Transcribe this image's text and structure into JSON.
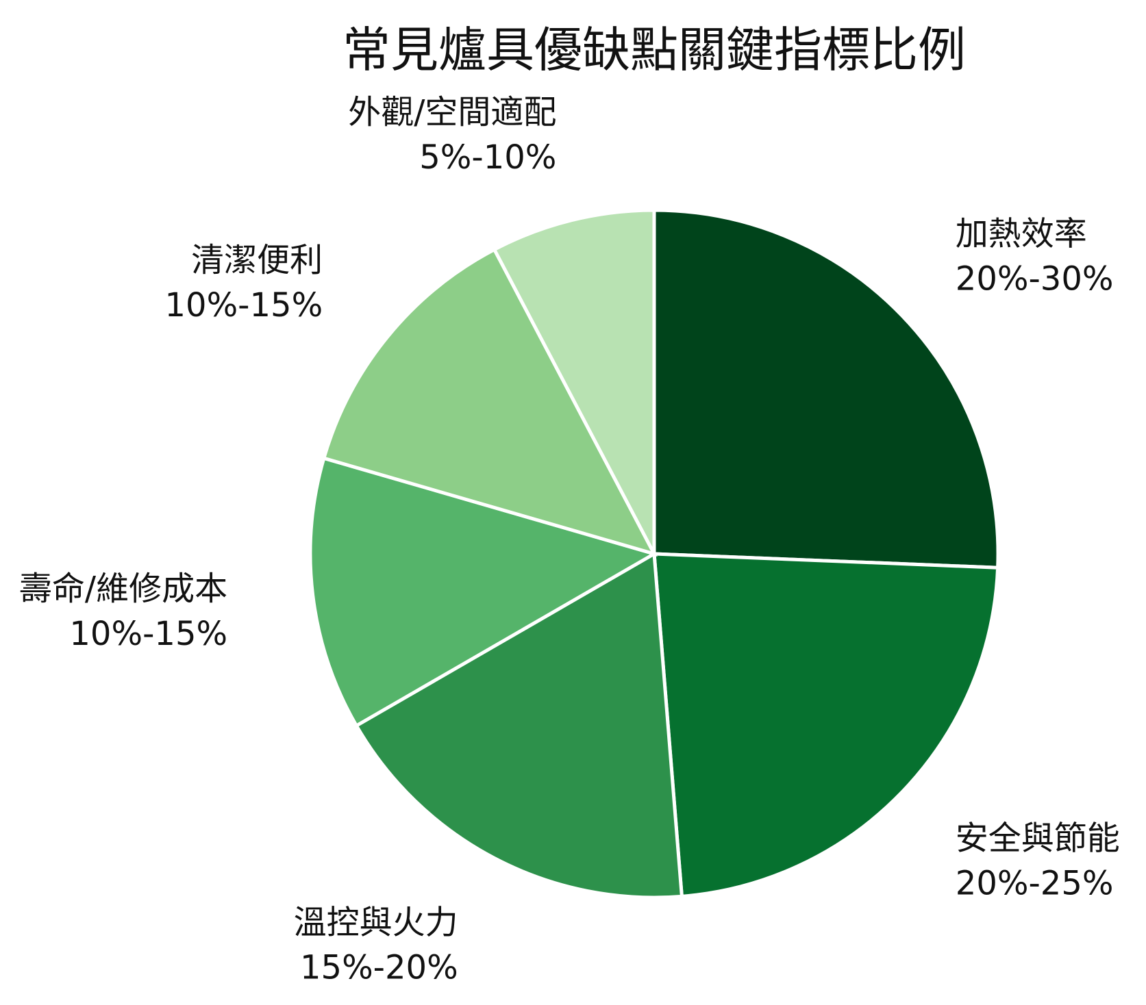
{
  "chart_data": {
    "type": "pie",
    "title": "常見爐具優缺點關鍵指標比例",
    "slices": [
      {
        "label": "加熱效率",
        "range": "20%-30%",
        "value": 25,
        "color": "#00441b"
      },
      {
        "label": "安全與節能",
        "range": "20%-25%",
        "value": 22.5,
        "color": "#06712f"
      },
      {
        "label": "溫控與火力",
        "range": "15%-20%",
        "value": 17.5,
        "color": "#2d914b"
      },
      {
        "label": "壽命/維修成本",
        "range": "10%-15%",
        "value": 12.5,
        "color": "#55b46a"
      },
      {
        "label": "清潔便利",
        "range": "10%-15%",
        "value": 12.5,
        "color": "#8dce88"
      },
      {
        "label": "外觀/空間適配",
        "range": "5%-10%",
        "value": 7.5,
        "color": "#b8e2b2"
      }
    ]
  }
}
